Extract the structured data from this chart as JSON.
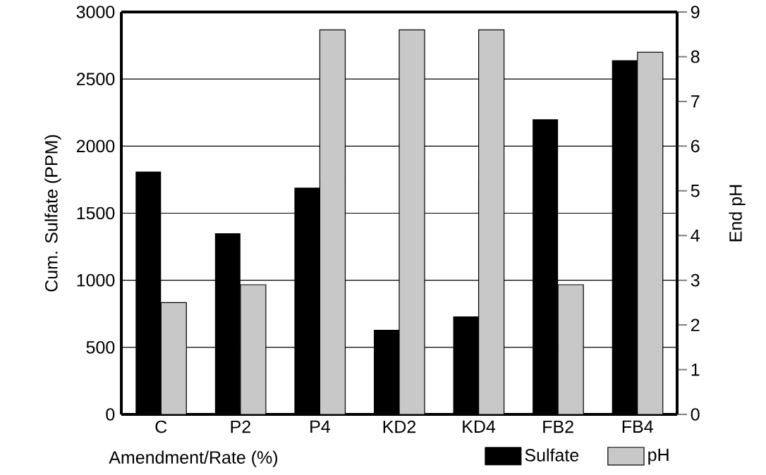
{
  "chart_data": {
    "type": "bar",
    "categories": [
      "C",
      "P2",
      "P4",
      "KD2",
      "KD4",
      "FB2",
      "FB4"
    ],
    "xlabel": "Amendment/Rate (%)",
    "ylabel": "Cum. Sulfate (PPM)",
    "y2label": "End pH",
    "series": [
      {
        "name": "Sulfate",
        "color": "#000000",
        "values": [
          1810,
          1350,
          1690,
          630,
          730,
          2200,
          2640
        ]
      },
      {
        "name": "pH",
        "color": "#c8c8c8",
        "axis": "y2",
        "values": [
          2.5,
          2.9,
          8.6,
          8.6,
          8.6,
          2.9,
          8.1
        ]
      }
    ],
    "ylim": [
      0,
      3000
    ],
    "yticks": [
      0,
      500,
      1000,
      1500,
      2000,
      2500,
      3000
    ],
    "y2lim": [
      0,
      9
    ],
    "y2ticks": [
      0,
      1,
      2,
      3,
      4,
      5,
      6,
      7,
      8,
      9
    ],
    "grid": "y",
    "legend": "bottom"
  }
}
